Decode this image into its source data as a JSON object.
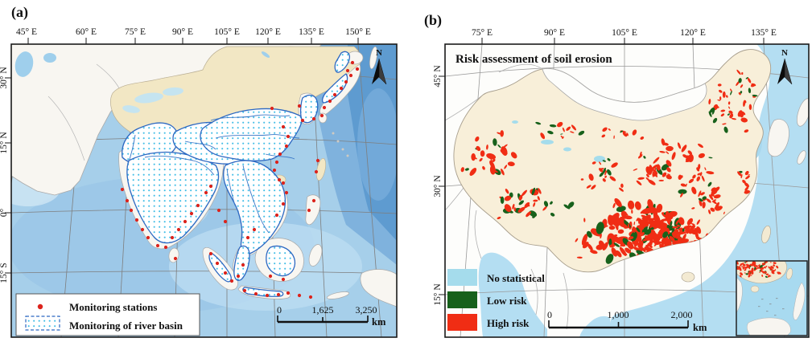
{
  "figure": {
    "panel_a": {
      "label": "(a)",
      "longitude_labels": [
        "45° E",
        "60° E",
        "75° E",
        "90° E",
        "105° E",
        "120° E",
        "135° E",
        "150° E"
      ],
      "latitude_labels": [
        "30° N",
        "15° N",
        "0°",
        "15° S"
      ],
      "legend": {
        "items": [
          {
            "label": "Monitoring stations",
            "symbol": "red-dot"
          },
          {
            "label": "Monitoring of river basin",
            "symbol": "blue-dotted-area"
          }
        ]
      },
      "scalebar": {
        "tick_labels": [
          "0",
          "1,625",
          "3,250"
        ],
        "unit": "km"
      },
      "north_arrow_label": "N"
    },
    "panel_b": {
      "label": "(b)",
      "title": "Risk assessment of soil erosion",
      "longitude_labels": [
        "75° E",
        "90° E",
        "105° E",
        "120° E",
        "135° E"
      ],
      "latitude_labels": [
        "45° N",
        "30° N",
        "15° N"
      ],
      "legend": {
        "items": [
          {
            "label": "No statistical",
            "color": "#a5dcec"
          },
          {
            "label": "Low risk",
            "color": "#17611b"
          },
          {
            "label": "High risk",
            "color": "#f02d14"
          }
        ]
      },
      "scalebar": {
        "tick_labels": [
          "0",
          "1,000",
          "2,000"
        ],
        "unit": "km"
      },
      "north_arrow_label": "N"
    },
    "colors": {
      "ocean_a": "#a6cfea",
      "ocean_mid_a": "#7fb2dd",
      "ocean_deep_a": "#5e9bd0",
      "ocean_b": "#b4def2",
      "china_a": "#f2e7c4",
      "china_b": "#f8efd9",
      "other_land": "#f8f6f1",
      "basin_outline": "#2c68c2",
      "basin_dot": "#41bde6",
      "station_red": "#dc231c",
      "high_risk": "#f02d14",
      "low_risk": "#17611b",
      "no_statistical": "#a5dcec"
    }
  }
}
